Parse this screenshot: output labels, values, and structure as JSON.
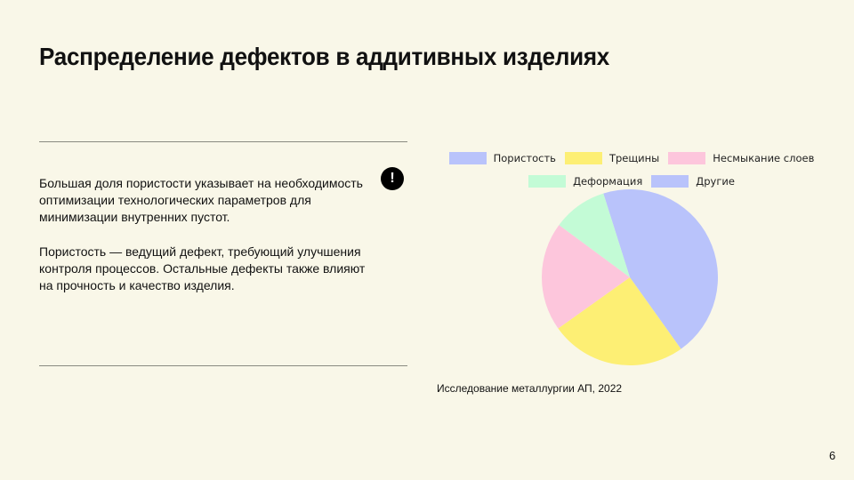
{
  "slide": {
    "title": "Распределение дефектов в аддитивных изделиях",
    "paragraph1": "Большая доля пористости указывает на необходимость оптимизации технологических параметров для минимизации внутренних пустот.",
    "paragraph2": "Пористость — ведущий дефект, требующий улучшения контроля процессов. Остальные дефекты также влияют на прочность и качество изделия.",
    "alert_icon": "exclamation-circle-icon",
    "alert_glyph": "!",
    "source": "Исследование металлургии АП, 2022",
    "page_number": "6"
  },
  "chart_data": {
    "type": "pie",
    "title": "",
    "categories": [
      "Пористость",
      "Трещины",
      "Несмыкание слоев",
      "Деформация",
      "Другие"
    ],
    "values": [
      45,
      25,
      20,
      10,
      0
    ],
    "colors": [
      "#b9c3fb",
      "#fdef74",
      "#fdc6dc",
      "#c3fbd6",
      "#b9c3fb"
    ],
    "start_angle_deg": -17.5,
    "direction": "clockwise",
    "legend_position": "top"
  }
}
